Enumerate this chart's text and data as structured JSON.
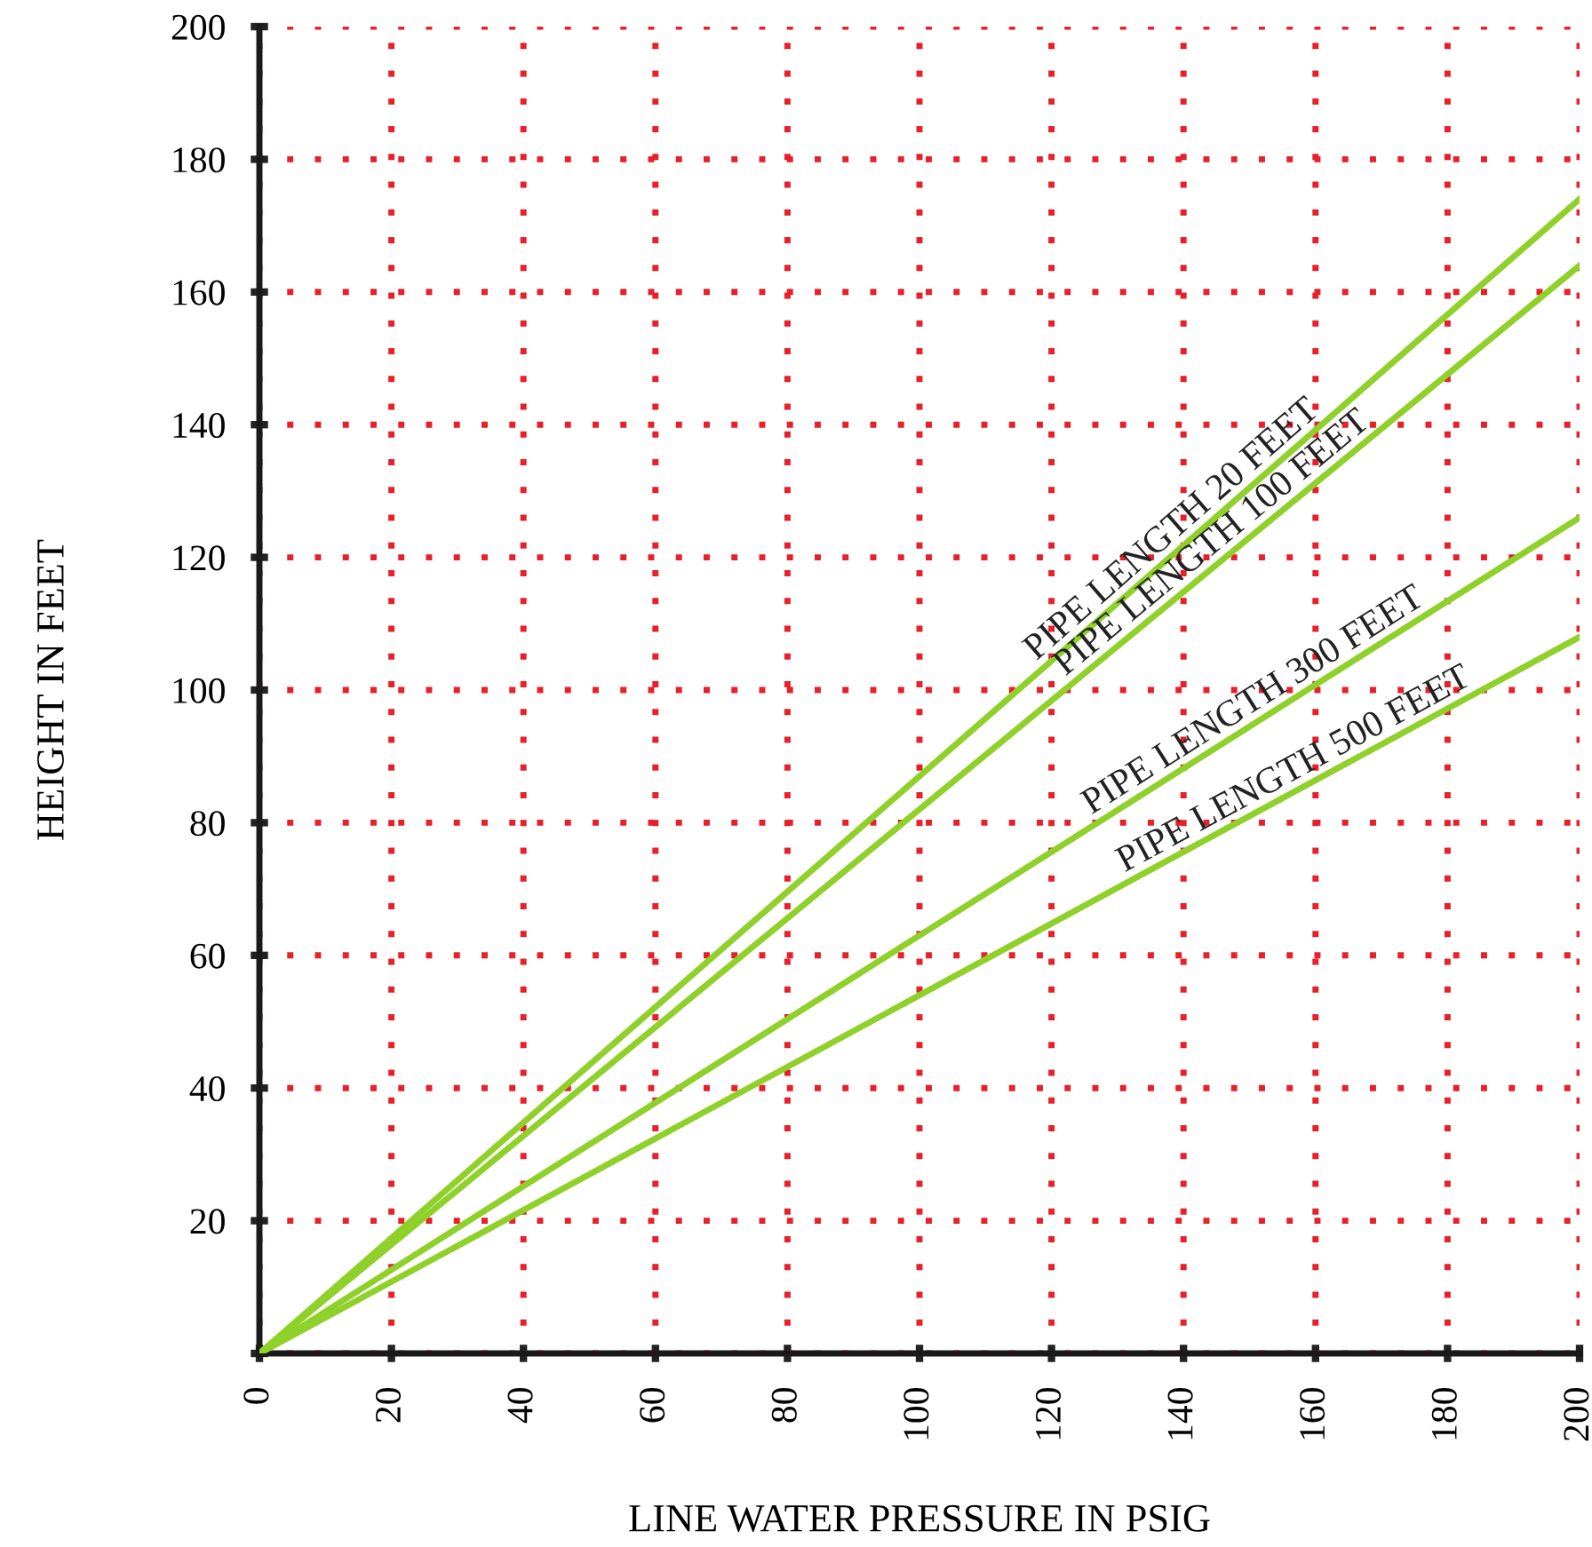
{
  "chart_data": {
    "type": "line",
    "xlabel": "LINE WATER PRESSURE IN PSIG",
    "ylabel": "HEIGHT IN FEET",
    "x": [
      0,
      200
    ],
    "series": [
      {
        "name": "PIPE LENGTH 20 FEET",
        "color": "#8fd12a",
        "values": [
          0,
          174
        ]
      },
      {
        "name": "PIPE LENGTH 100 FEET",
        "color": "#8fd12a",
        "values": [
          0,
          164
        ]
      },
      {
        "name": "PIPE LENGTH 300 FEET",
        "color": "#8fd12a",
        "values": [
          0,
          126
        ]
      },
      {
        "name": "PIPE LENGTH 500 FEET",
        "color": "#8fd12a",
        "values": [
          0,
          108
        ]
      }
    ],
    "xlim": [
      0,
      200
    ],
    "ylim": [
      0,
      200
    ],
    "xticks": [
      0,
      20,
      40,
      60,
      80,
      100,
      120,
      140,
      160,
      180,
      200
    ],
    "yticks": [
      {
        "value": 0,
        "label": null
      },
      20,
      40,
      60,
      80,
      100,
      120,
      140,
      160,
      180,
      200
    ],
    "grid": true,
    "legend": false,
    "marker": "none",
    "line_style": "solid"
  }
}
